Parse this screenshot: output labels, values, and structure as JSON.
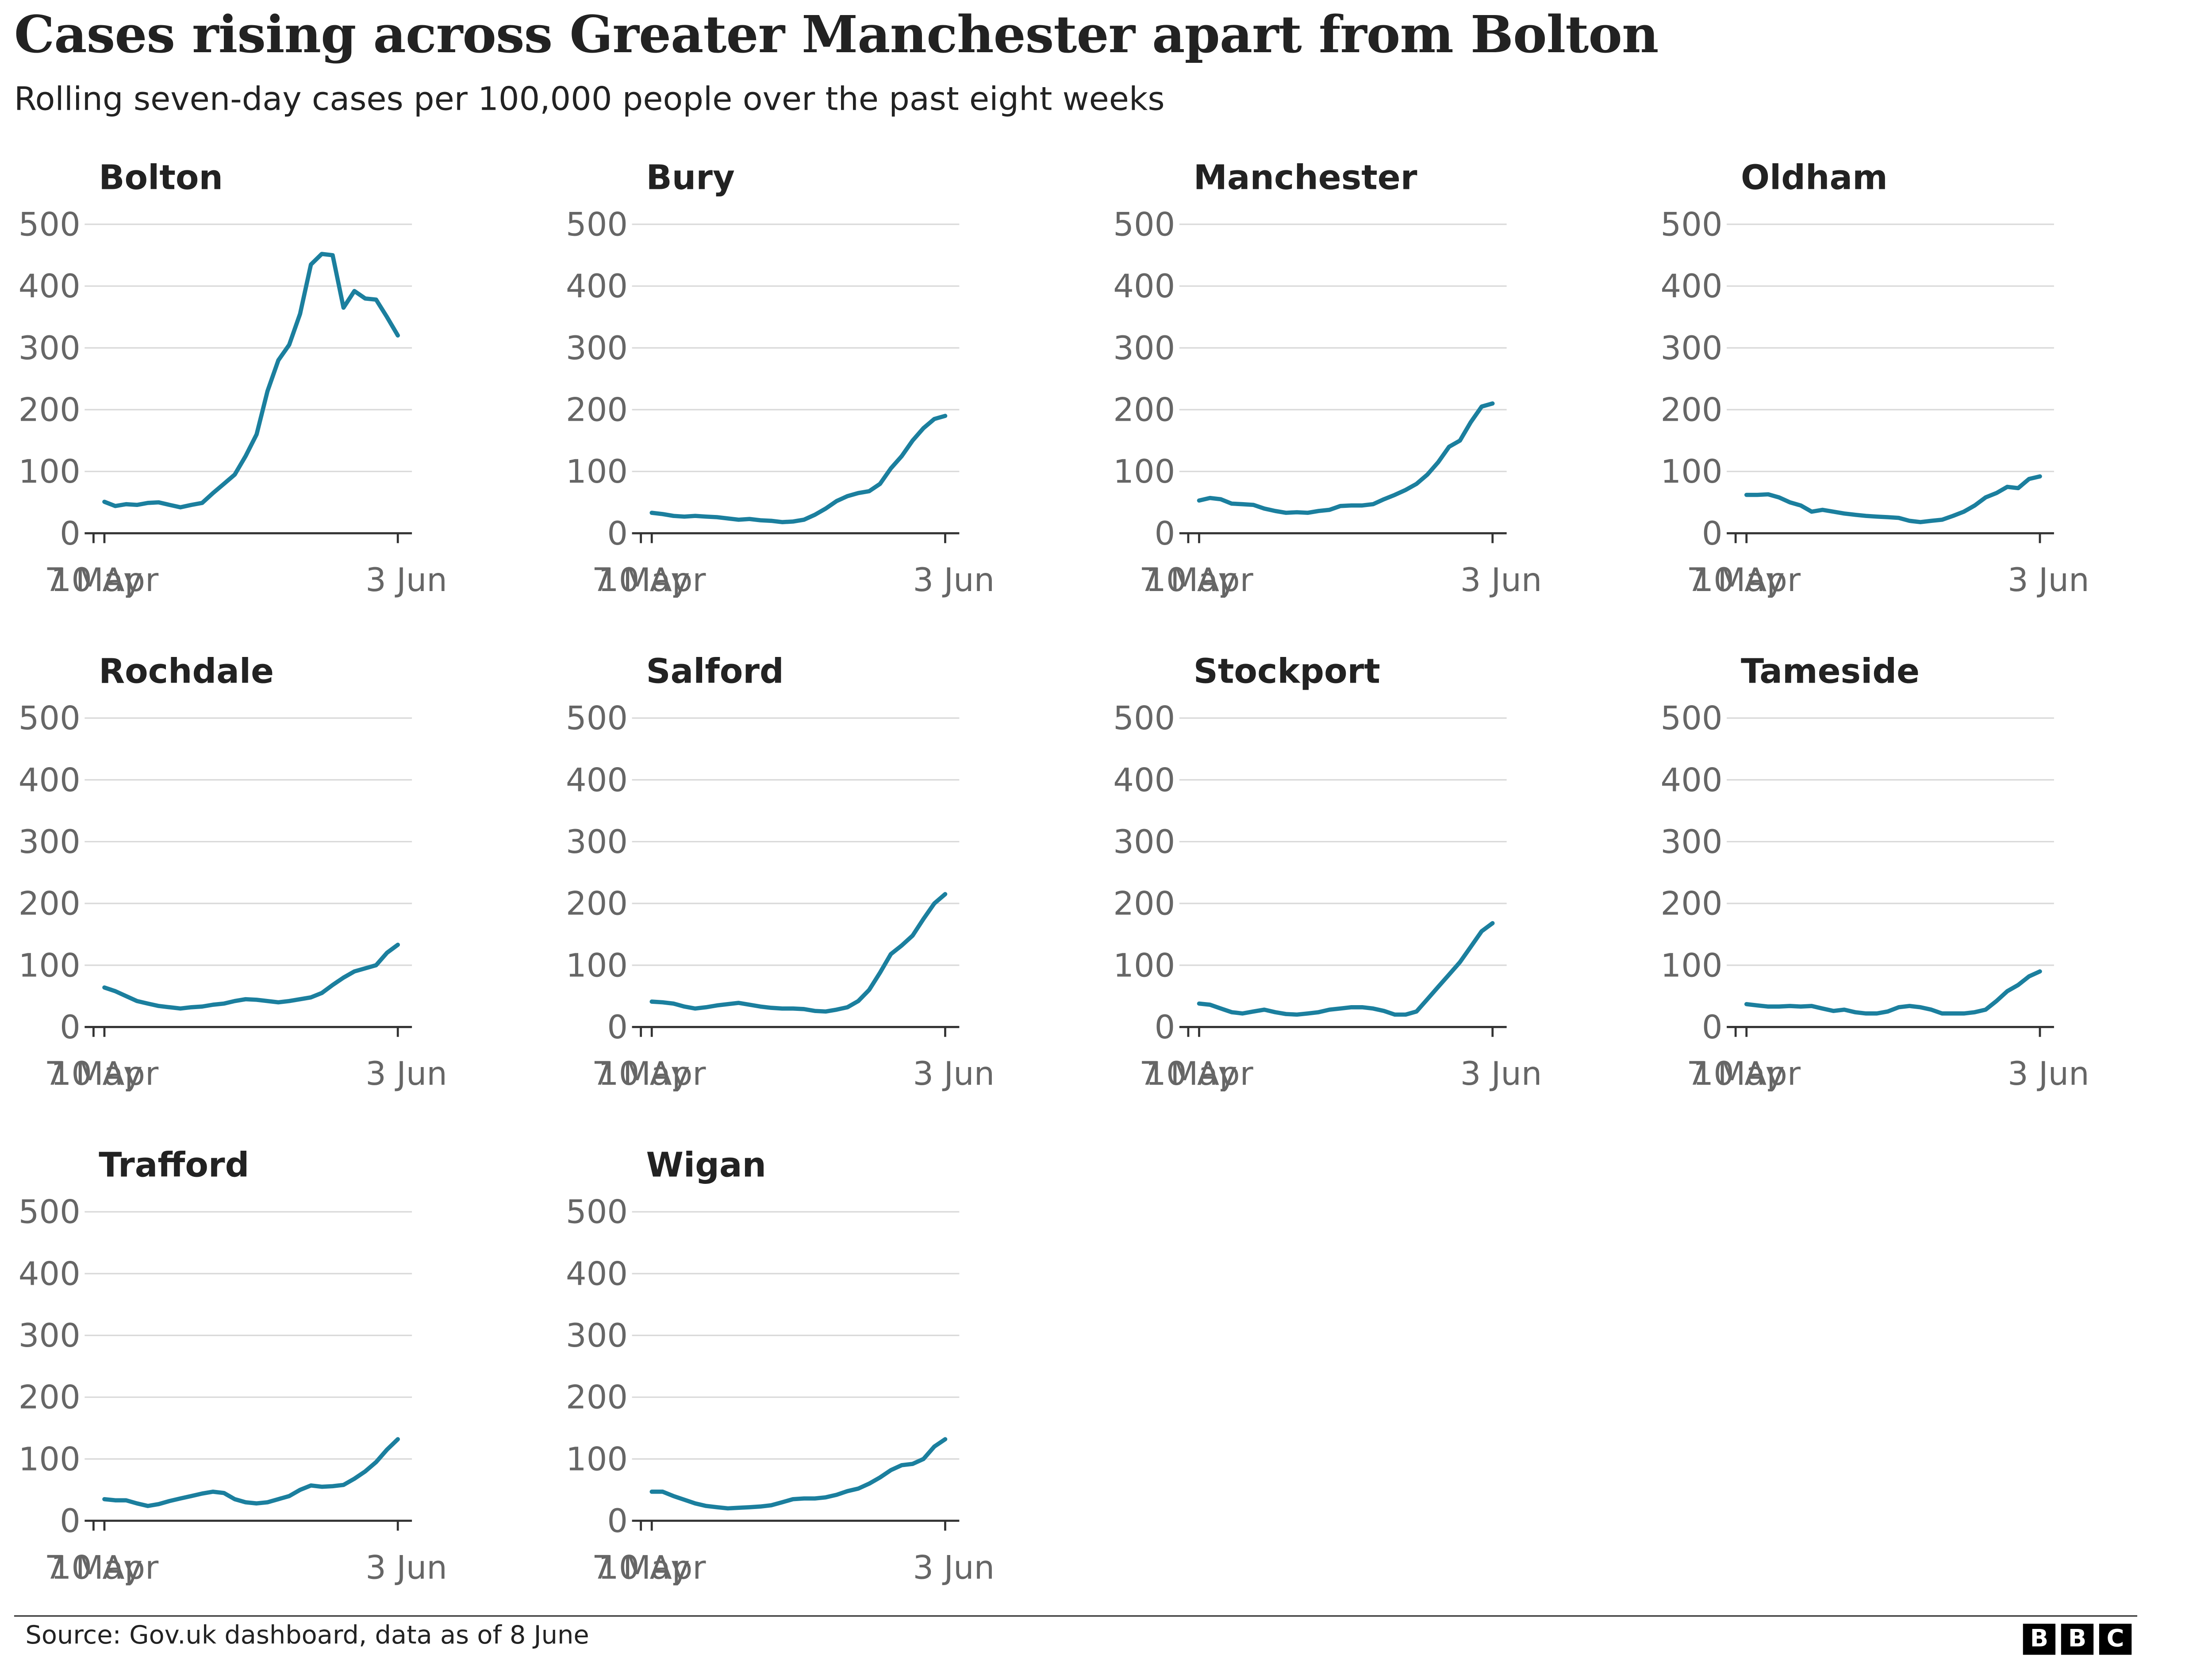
{
  "header": {
    "title": "Cases rising across Greater Manchester apart from Bolton",
    "subtitle": "Rolling seven-day cases per 100,000 people over the past eight weeks"
  },
  "footer": {
    "source": "Source: Gov.uk dashboard, data as of  8 June",
    "logo": [
      "B",
      "B",
      "C"
    ]
  },
  "colors": {
    "line": "#1b7f9e",
    "grid": "#d9d9d9",
    "axis": "#333333",
    "tick_label": "#666666"
  },
  "chart_data": [
    {
      "type": "line",
      "title": "Bolton",
      "x": [
        "10 Apr",
        "12 Apr",
        "14 Apr",
        "16 Apr",
        "18 Apr",
        "20 Apr",
        "22 Apr",
        "24 Apr",
        "26 Apr",
        "28 Apr",
        "30 Apr",
        "2 May",
        "4 May",
        "6 May",
        "8 May",
        "10 May",
        "12 May",
        "14 May",
        "16 May",
        "18 May",
        "20 May",
        "22 May",
        "24 May",
        "26 May",
        "28 May",
        "30 May",
        "1 Jun",
        "3 Jun"
      ],
      "values": [
        51,
        44,
        47,
        46,
        49,
        50,
        46,
        42,
        46,
        49,
        65,
        80,
        95,
        125,
        160,
        230,
        280,
        305,
        355,
        435,
        452,
        450,
        365,
        392,
        380,
        378,
        350,
        320
      ],
      "xticks": [
        "10 Apr",
        "7 May",
        "3 Jun"
      ],
      "yticks": [
        0,
        100,
        200,
        300,
        400,
        500
      ],
      "ylim": [
        0,
        500
      ]
    },
    {
      "type": "line",
      "title": "Bury",
      "x": [
        "10 Apr",
        "12 Apr",
        "14 Apr",
        "16 Apr",
        "18 Apr",
        "20 Apr",
        "22 Apr",
        "24 Apr",
        "26 Apr",
        "28 Apr",
        "30 Apr",
        "2 May",
        "4 May",
        "6 May",
        "8 May",
        "10 May",
        "12 May",
        "14 May",
        "16 May",
        "18 May",
        "20 May",
        "22 May",
        "24 May",
        "26 May",
        "28 May",
        "30 May",
        "1 Jun",
        "3 Jun"
      ],
      "values": [
        33,
        31,
        28,
        27,
        28,
        27,
        26,
        24,
        22,
        23,
        21,
        20,
        18,
        19,
        22,
        30,
        40,
        52,
        60,
        65,
        68,
        80,
        105,
        125,
        150,
        170,
        185,
        190
      ],
      "xticks": [
        "10 Apr",
        "7 May",
        "3 Jun"
      ],
      "yticks": [
        0,
        100,
        200,
        300,
        400,
        500
      ],
      "ylim": [
        0,
        500
      ]
    },
    {
      "type": "line",
      "title": "Manchester",
      "x": [
        "10 Apr",
        "12 Apr",
        "14 Apr",
        "16 Apr",
        "18 Apr",
        "20 Apr",
        "22 Apr",
        "24 Apr",
        "26 Apr",
        "28 Apr",
        "30 Apr",
        "2 May",
        "4 May",
        "6 May",
        "8 May",
        "10 May",
        "12 May",
        "14 May",
        "16 May",
        "18 May",
        "20 May",
        "22 May",
        "24 May",
        "26 May",
        "28 May",
        "30 May",
        "1 Jun",
        "3 Jun"
      ],
      "values": [
        53,
        57,
        55,
        48,
        47,
        46,
        40,
        36,
        33,
        34,
        33,
        36,
        38,
        44,
        45,
        45,
        47,
        55,
        62,
        70,
        80,
        95,
        115,
        140,
        150,
        180,
        205,
        210
      ],
      "xticks": [
        "10 Apr",
        "7 May",
        "3 Jun"
      ],
      "yticks": [
        0,
        100,
        200,
        300,
        400,
        500
      ],
      "ylim": [
        0,
        500
      ]
    },
    {
      "type": "line",
      "title": "Oldham",
      "x": [
        "10 Apr",
        "12 Apr",
        "14 Apr",
        "16 Apr",
        "18 Apr",
        "20 Apr",
        "22 Apr",
        "24 Apr",
        "26 Apr",
        "28 Apr",
        "30 Apr",
        "2 May",
        "4 May",
        "6 May",
        "8 May",
        "10 May",
        "12 May",
        "14 May",
        "16 May",
        "18 May",
        "20 May",
        "22 May",
        "24 May",
        "26 May",
        "28 May",
        "30 May",
        "1 Jun",
        "3 Jun"
      ],
      "values": [
        62,
        62,
        63,
        58,
        50,
        45,
        35,
        38,
        35,
        32,
        30,
        28,
        27,
        26,
        25,
        20,
        18,
        20,
        22,
        28,
        35,
        45,
        58,
        65,
        75,
        73,
        88,
        92
      ],
      "xticks": [
        "10 Apr",
        "7 May",
        "3 Jun"
      ],
      "yticks": [
        0,
        100,
        200,
        300,
        400,
        500
      ],
      "ylim": [
        0,
        500
      ]
    },
    {
      "type": "line",
      "title": "Rochdale",
      "x": [
        "10 Apr",
        "12 Apr",
        "14 Apr",
        "16 Apr",
        "18 Apr",
        "20 Apr",
        "22 Apr",
        "24 Apr",
        "26 Apr",
        "28 Apr",
        "30 Apr",
        "2 May",
        "4 May",
        "6 May",
        "8 May",
        "10 May",
        "12 May",
        "14 May",
        "16 May",
        "18 May",
        "20 May",
        "22 May",
        "24 May",
        "26 May",
        "28 May",
        "30 May",
        "1 Jun",
        "3 Jun"
      ],
      "values": [
        64,
        58,
        50,
        42,
        38,
        34,
        32,
        30,
        32,
        33,
        36,
        38,
        42,
        45,
        44,
        42,
        40,
        42,
        45,
        48,
        55,
        68,
        80,
        90,
        95,
        100,
        120,
        133
      ],
      "xticks": [
        "10 Apr",
        "7 May",
        "3 Jun"
      ],
      "yticks": [
        0,
        100,
        200,
        300,
        400,
        500
      ],
      "ylim": [
        0,
        500
      ]
    },
    {
      "type": "line",
      "title": "Salford",
      "x": [
        "10 Apr",
        "12 Apr",
        "14 Apr",
        "16 Apr",
        "18 Apr",
        "20 Apr",
        "22 Apr",
        "24 Apr",
        "26 Apr",
        "28 Apr",
        "30 Apr",
        "2 May",
        "4 May",
        "6 May",
        "8 May",
        "10 May",
        "12 May",
        "14 May",
        "16 May",
        "18 May",
        "20 May",
        "22 May",
        "24 May",
        "26 May",
        "28 May",
        "30 May",
        "1 Jun",
        "3 Jun"
      ],
      "values": [
        41,
        40,
        38,
        33,
        30,
        32,
        35,
        37,
        39,
        36,
        33,
        31,
        30,
        30,
        29,
        26,
        25,
        28,
        32,
        42,
        60,
        88,
        118,
        132,
        148,
        175,
        200,
        215
      ],
      "xticks": [
        "10 Apr",
        "7 May",
        "3 Jun"
      ],
      "yticks": [
        0,
        100,
        200,
        300,
        400,
        500
      ],
      "ylim": [
        0,
        500
      ]
    },
    {
      "type": "line",
      "title": "Stockport",
      "x": [
        "10 Apr",
        "12 Apr",
        "14 Apr",
        "16 Apr",
        "18 Apr",
        "20 Apr",
        "22 Apr",
        "24 Apr",
        "26 Apr",
        "28 Apr",
        "30 Apr",
        "2 May",
        "4 May",
        "6 May",
        "8 May",
        "10 May",
        "12 May",
        "14 May",
        "16 May",
        "18 May",
        "20 May",
        "22 May",
        "24 May",
        "26 May",
        "28 May",
        "30 May",
        "1 Jun",
        "3 Jun"
      ],
      "values": [
        38,
        36,
        30,
        24,
        22,
        25,
        28,
        24,
        21,
        20,
        22,
        24,
        28,
        30,
        32,
        32,
        30,
        26,
        20,
        20,
        25,
        45,
        65,
        85,
        105,
        130,
        155,
        168
      ],
      "xticks": [
        "10 Apr",
        "7 May",
        "3 Jun"
      ],
      "yticks": [
        0,
        100,
        200,
        300,
        400,
        500
      ],
      "ylim": [
        0,
        500
      ]
    },
    {
      "type": "line",
      "title": "Tameside",
      "x": [
        "10 Apr",
        "12 Apr",
        "14 Apr",
        "16 Apr",
        "18 Apr",
        "20 Apr",
        "22 Apr",
        "24 Apr",
        "26 Apr",
        "28 Apr",
        "30 Apr",
        "2 May",
        "4 May",
        "6 May",
        "8 May",
        "10 May",
        "12 May",
        "14 May",
        "16 May",
        "18 May",
        "20 May",
        "22 May",
        "24 May",
        "26 May",
        "28 May",
        "30 May",
        "1 Jun",
        "3 Jun"
      ],
      "values": [
        37,
        35,
        33,
        33,
        34,
        33,
        34,
        30,
        26,
        28,
        24,
        22,
        22,
        25,
        32,
        34,
        32,
        28,
        22,
        22,
        22,
        24,
        28,
        42,
        58,
        68,
        82,
        90
      ],
      "xticks": [
        "10 Apr",
        "7 May",
        "3 Jun"
      ],
      "yticks": [
        0,
        100,
        200,
        300,
        400,
        500
      ],
      "ylim": [
        0,
        500
      ]
    },
    {
      "type": "line",
      "title": "Trafford",
      "x": [
        "10 Apr",
        "12 Apr",
        "14 Apr",
        "16 Apr",
        "18 Apr",
        "20 Apr",
        "22 Apr",
        "24 Apr",
        "26 Apr",
        "28 Apr",
        "30 Apr",
        "2 May",
        "4 May",
        "6 May",
        "8 May",
        "10 May",
        "12 May",
        "14 May",
        "16 May",
        "18 May",
        "20 May",
        "22 May",
        "24 May",
        "26 May",
        "28 May",
        "30 May",
        "1 Jun",
        "3 Jun"
      ],
      "values": [
        35,
        33,
        33,
        28,
        24,
        27,
        32,
        36,
        40,
        44,
        47,
        45,
        35,
        30,
        28,
        30,
        35,
        40,
        50,
        57,
        55,
        56,
        58,
        68,
        80,
        95,
        115,
        132
      ],
      "xticks": [
        "10 Apr",
        "7 May",
        "3 Jun"
      ],
      "yticks": [
        0,
        100,
        200,
        300,
        400,
        500
      ],
      "ylim": [
        0,
        500
      ]
    },
    {
      "type": "line",
      "title": "Wigan",
      "x": [
        "10 Apr",
        "12 Apr",
        "14 Apr",
        "16 Apr",
        "18 Apr",
        "20 Apr",
        "22 Apr",
        "24 Apr",
        "26 Apr",
        "28 Apr",
        "30 Apr",
        "2 May",
        "4 May",
        "6 May",
        "8 May",
        "10 May",
        "12 May",
        "14 May",
        "16 May",
        "18 May",
        "20 May",
        "22 May",
        "24 May",
        "26 May",
        "28 May",
        "30 May",
        "1 Jun",
        "3 Jun"
      ],
      "values": [
        47,
        47,
        40,
        34,
        28,
        24,
        22,
        20,
        21,
        22,
        23,
        25,
        30,
        35,
        36,
        36,
        38,
        42,
        48,
        52,
        60,
        70,
        82,
        90,
        92,
        100,
        120,
        132
      ],
      "xticks": [
        "10 Apr",
        "7 May",
        "3 Jun"
      ],
      "yticks": [
        0,
        100,
        200,
        300,
        400,
        500
      ],
      "ylim": [
        0,
        500
      ]
    }
  ]
}
